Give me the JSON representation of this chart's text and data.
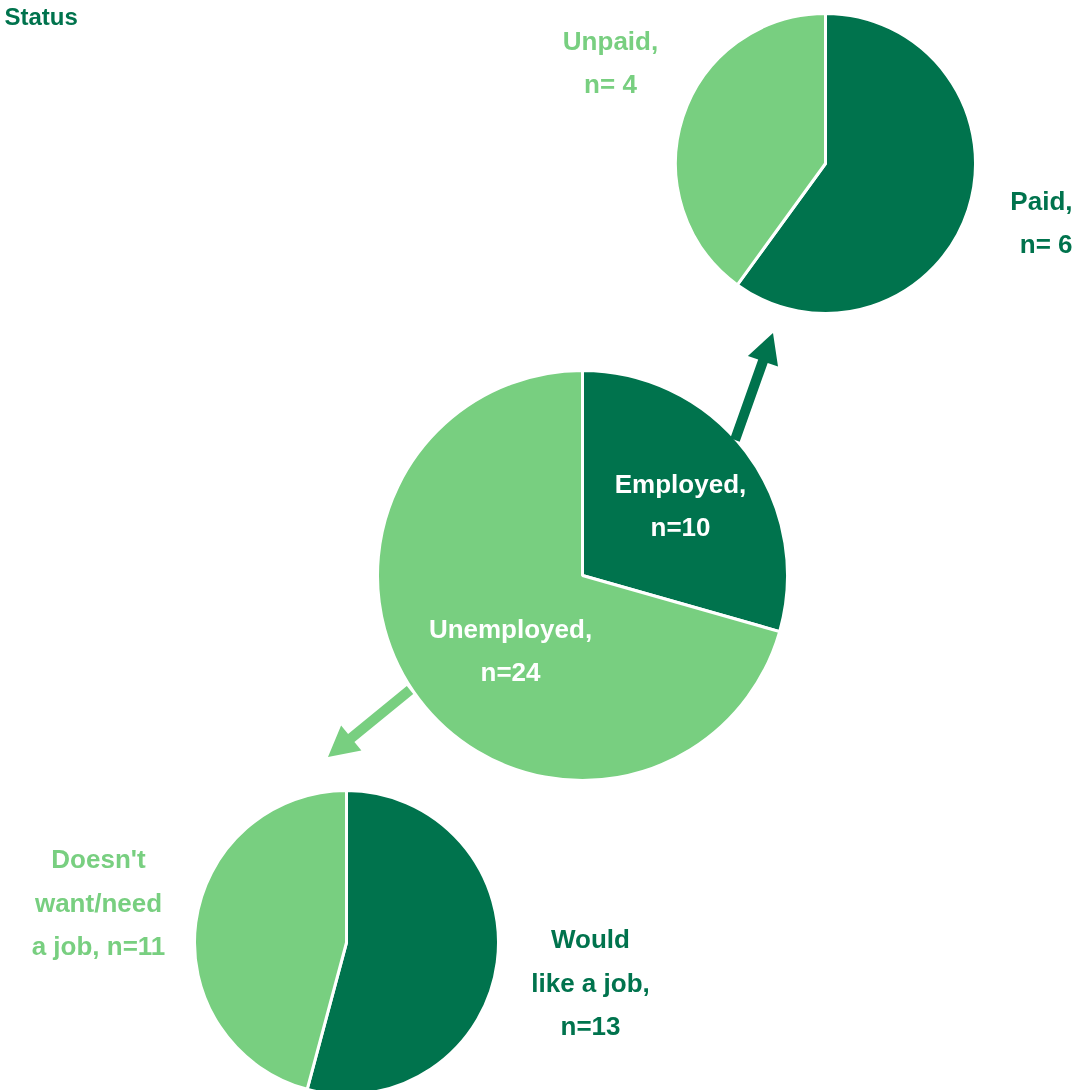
{
  "chart_data": [
    {
      "type": "pie",
      "title": "Status",
      "categories": [
        "Employed,\nn=10",
        "Unemployed,\nn=24"
      ],
      "values": [
        10,
        24
      ],
      "colors": [
        "#00734d",
        "#78cf80"
      ]
    },
    {
      "type": "pie",
      "categories": [
        "Paid,\nn= 6",
        "Unpaid,\nn= 4"
      ],
      "values": [
        6,
        4
      ],
      "colors": [
        "#00734d",
        "#78cf80"
      ]
    },
    {
      "type": "pie",
      "categories": [
        "Would\nlike a job,\nn=13",
        "Doesn't\nwant/need\na job, n=11"
      ],
      "values": [
        13,
        11
      ],
      "colors": [
        "#00734d",
        "#78cf80"
      ]
    }
  ]
}
